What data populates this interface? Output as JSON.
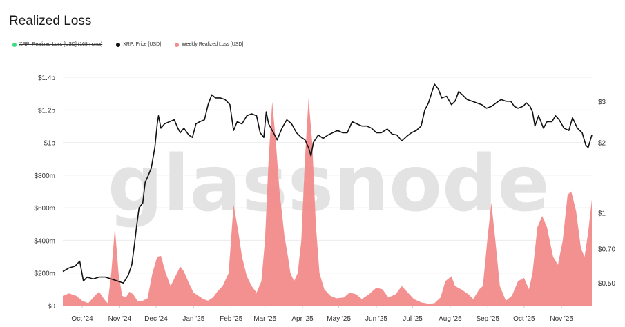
{
  "title": "Realized Loss",
  "legend": [
    {
      "label": "XRP: Realized Loss [USD] (168h sma)",
      "color": "#3ddc84",
      "struck": true
    },
    {
      "label": "XRP: Price [USD]",
      "color": "#111111",
      "struck": false
    },
    {
      "label": "Weekly Realized Loss [USD]",
      "color": "#f28b8b",
      "struck": false
    }
  ],
  "watermark": "glassnode",
  "chart_data": {
    "type": "area+line",
    "x_ticks": [
      "Oct '24",
      "Nov '24",
      "Dec '24",
      "Jan '25",
      "Feb '25",
      "Mar '25",
      "Apr '25",
      "May '25",
      "Jun '25",
      "Jul '25",
      "Aug '25",
      "Sep '25",
      "Oct '25",
      "Nov '25"
    ],
    "y_left": {
      "ticks": [
        "$0",
        "$200m",
        "$400m",
        "$600m",
        "$800m",
        "$1b",
        "$1.2b",
        "$1.4b"
      ],
      "range": [
        0,
        1400
      ]
    },
    "y_right": {
      "scale": "log",
      "ticks": [
        "$0.50",
        "$0.70",
        "$1",
        "$2",
        "$3"
      ],
      "range": [
        0.4,
        3.8
      ]
    },
    "series": [
      {
        "name": "Weekly Realized Loss [USD]",
        "color": "#f28b8b",
        "unit": "USD millions",
        "points": [
          [
            "2024-09-15",
            60
          ],
          [
            "2024-09-20",
            75
          ],
          [
            "2024-09-26",
            60
          ],
          [
            "2024-10-01",
            30
          ],
          [
            "2024-10-06",
            15
          ],
          [
            "2024-10-12",
            65
          ],
          [
            "2024-10-15",
            85
          ],
          [
            "2024-10-19",
            40
          ],
          [
            "2024-10-22",
            15
          ],
          [
            "2024-10-25",
            200
          ],
          [
            "2024-10-28",
            480
          ],
          [
            "2024-10-31",
            200
          ],
          [
            "2024-11-03",
            60
          ],
          [
            "2024-11-06",
            50
          ],
          [
            "2024-11-09",
            85
          ],
          [
            "2024-11-12",
            70
          ],
          [
            "2024-11-16",
            25
          ],
          [
            "2024-11-20",
            30
          ],
          [
            "2024-11-24",
            45
          ],
          [
            "2024-11-28",
            200
          ],
          [
            "2024-12-02",
            300
          ],
          [
            "2024-12-05",
            305
          ],
          [
            "2024-12-09",
            200
          ],
          [
            "2024-12-13",
            120
          ],
          [
            "2024-12-17",
            180
          ],
          [
            "2024-12-21",
            240
          ],
          [
            "2024-12-24",
            210
          ],
          [
            "2024-12-28",
            140
          ],
          [
            "2025-01-01",
            80
          ],
          [
            "2025-01-05",
            60
          ],
          [
            "2025-01-09",
            40
          ],
          [
            "2025-01-13",
            30
          ],
          [
            "2025-01-17",
            50
          ],
          [
            "2025-01-21",
            90
          ],
          [
            "2025-01-25",
            120
          ],
          [
            "2025-01-30",
            200
          ],
          [
            "2025-02-03",
            620
          ],
          [
            "2025-02-07",
            450
          ],
          [
            "2025-02-10",
            300
          ],
          [
            "2025-02-14",
            180
          ],
          [
            "2025-02-18",
            120
          ],
          [
            "2025-02-22",
            80
          ],
          [
            "2025-02-26",
            150
          ],
          [
            "2025-03-01",
            400
          ],
          [
            "2025-03-04",
            900
          ],
          [
            "2025-03-07",
            1250
          ],
          [
            "2025-03-10",
            1000
          ],
          [
            "2025-03-13",
            700
          ],
          [
            "2025-03-17",
            430
          ],
          [
            "2025-03-20",
            300
          ],
          [
            "2025-03-22",
            200
          ],
          [
            "2025-03-25",
            150
          ],
          [
            "2025-03-28",
            200
          ],
          [
            "2025-03-31",
            400
          ],
          [
            "2025-04-03",
            900
          ],
          [
            "2025-04-06",
            1270
          ],
          [
            "2025-04-09",
            1000
          ],
          [
            "2025-04-12",
            500
          ],
          [
            "2025-04-15",
            200
          ],
          [
            "2025-04-19",
            100
          ],
          [
            "2025-04-24",
            60
          ],
          [
            "2025-04-29",
            45
          ],
          [
            "2025-05-05",
            50
          ],
          [
            "2025-05-10",
            80
          ],
          [
            "2025-05-15",
            70
          ],
          [
            "2025-05-20",
            40
          ],
          [
            "2025-05-26",
            70
          ],
          [
            "2025-06-01",
            110
          ],
          [
            "2025-06-06",
            100
          ],
          [
            "2025-06-11",
            50
          ],
          [
            "2025-06-17",
            70
          ],
          [
            "2025-06-22",
            120
          ],
          [
            "2025-06-27",
            80
          ],
          [
            "2025-07-02",
            40
          ],
          [
            "2025-07-08",
            20
          ],
          [
            "2025-07-14",
            12
          ],
          [
            "2025-07-19",
            15
          ],
          [
            "2025-07-24",
            50
          ],
          [
            "2025-07-28",
            150
          ],
          [
            "2025-08-02",
            180
          ],
          [
            "2025-08-05",
            120
          ],
          [
            "2025-08-10",
            100
          ],
          [
            "2025-08-16",
            70
          ],
          [
            "2025-08-20",
            40
          ],
          [
            "2025-08-25",
            100
          ],
          [
            "2025-08-28",
            120
          ],
          [
            "2025-09-01",
            430
          ],
          [
            "2025-09-04",
            630
          ],
          [
            "2025-09-07",
            420
          ],
          [
            "2025-09-11",
            120
          ],
          [
            "2025-09-16",
            30
          ],
          [
            "2025-09-21",
            60
          ],
          [
            "2025-09-26",
            150
          ],
          [
            "2025-10-01",
            170
          ],
          [
            "2025-10-05",
            100
          ],
          [
            "2025-10-08",
            200
          ],
          [
            "2025-10-12",
            480
          ],
          [
            "2025-10-16",
            550
          ],
          [
            "2025-10-20",
            480
          ],
          [
            "2025-10-25",
            300
          ],
          [
            "2025-10-29",
            250
          ],
          [
            "2025-11-02",
            400
          ],
          [
            "2025-11-06",
            680
          ],
          [
            "2025-11-09",
            700
          ],
          [
            "2025-11-13",
            580
          ],
          [
            "2025-11-17",
            350
          ],
          [
            "2025-11-20",
            300
          ],
          [
            "2025-11-23",
            450
          ],
          [
            "2025-11-26",
            650
          ]
        ]
      },
      {
        "name": "XRP: Price [USD]",
        "color": "#111111",
        "unit": "USD",
        "points": [
          [
            "2024-09-15",
            0.56
          ],
          [
            "2024-09-20",
            0.58
          ],
          [
            "2024-09-25",
            0.59
          ],
          [
            "2024-09-29",
            0.62
          ],
          [
            "2024-10-02",
            0.51
          ],
          [
            "2024-10-05",
            0.53
          ],
          [
            "2024-10-10",
            0.52
          ],
          [
            "2024-10-15",
            0.53
          ],
          [
            "2024-10-20",
            0.53
          ],
          [
            "2024-10-25",
            0.52
          ],
          [
            "2024-10-30",
            0.51
          ],
          [
            "2024-11-04",
            0.5
          ],
          [
            "2024-11-08",
            0.54
          ],
          [
            "2024-11-11",
            0.6
          ],
          [
            "2024-11-13",
            0.72
          ],
          [
            "2024-11-15",
            0.88
          ],
          [
            "2024-11-17",
            1.05
          ],
          [
            "2024-11-20",
            1.1
          ],
          [
            "2024-11-22",
            1.35
          ],
          [
            "2024-11-24",
            1.42
          ],
          [
            "2024-11-27",
            1.55
          ],
          [
            "2024-11-30",
            1.9
          ],
          [
            "2024-12-02",
            2.4
          ],
          [
            "2024-12-03",
            2.6
          ],
          [
            "2024-12-05",
            2.3
          ],
          [
            "2024-12-08",
            2.4
          ],
          [
            "2024-12-12",
            2.45
          ],
          [
            "2024-12-16",
            2.5
          ],
          [
            "2024-12-19",
            2.3
          ],
          [
            "2024-12-21",
            2.2
          ],
          [
            "2024-12-24",
            2.3
          ],
          [
            "2024-12-28",
            2.15
          ],
          [
            "2024-12-31",
            2.1
          ],
          [
            "2025-01-03",
            2.4
          ],
          [
            "2025-01-06",
            2.45
          ],
          [
            "2025-01-10",
            2.5
          ],
          [
            "2025-01-13",
            2.9
          ],
          [
            "2025-01-16",
            3.2
          ],
          [
            "2025-01-19",
            3.1
          ],
          [
            "2025-01-23",
            3.1
          ],
          [
            "2025-01-27",
            3.05
          ],
          [
            "2025-01-31",
            2.9
          ],
          [
            "2025-02-03",
            2.25
          ],
          [
            "2025-02-06",
            2.45
          ],
          [
            "2025-02-10",
            2.4
          ],
          [
            "2025-02-14",
            2.6
          ],
          [
            "2025-02-18",
            2.65
          ],
          [
            "2025-02-22",
            2.6
          ],
          [
            "2025-02-25",
            2.2
          ],
          [
            "2025-02-28",
            2.1
          ],
          [
            "2025-03-02",
            2.7
          ],
          [
            "2025-03-04",
            2.4
          ],
          [
            "2025-03-08",
            2.2
          ],
          [
            "2025-03-11",
            2.05
          ],
          [
            "2025-03-15",
            2.3
          ],
          [
            "2025-03-19",
            2.5
          ],
          [
            "2025-03-23",
            2.4
          ],
          [
            "2025-03-27",
            2.2
          ],
          [
            "2025-03-31",
            2.1
          ],
          [
            "2025-04-03",
            2.05
          ],
          [
            "2025-04-06",
            1.9
          ],
          [
            "2025-04-08",
            1.75
          ],
          [
            "2025-04-10",
            2.0
          ],
          [
            "2025-04-14",
            2.15
          ],
          [
            "2025-04-18",
            2.08
          ],
          [
            "2025-04-22",
            2.15
          ],
          [
            "2025-04-26",
            2.2
          ],
          [
            "2025-04-30",
            2.25
          ],
          [
            "2025-05-04",
            2.2
          ],
          [
            "2025-05-08",
            2.2
          ],
          [
            "2025-05-12",
            2.45
          ],
          [
            "2025-05-16",
            2.4
          ],
          [
            "2025-05-20",
            2.35
          ],
          [
            "2025-05-24",
            2.35
          ],
          [
            "2025-05-28",
            2.3
          ],
          [
            "2025-06-01",
            2.2
          ],
          [
            "2025-06-05",
            2.2
          ],
          [
            "2025-06-10",
            2.28
          ],
          [
            "2025-06-14",
            2.17
          ],
          [
            "2025-06-18",
            2.15
          ],
          [
            "2025-06-22",
            2.03
          ],
          [
            "2025-06-26",
            2.12
          ],
          [
            "2025-06-30",
            2.2
          ],
          [
            "2025-07-04",
            2.25
          ],
          [
            "2025-07-08",
            2.35
          ],
          [
            "2025-07-11",
            2.75
          ],
          [
            "2025-07-14",
            2.95
          ],
          [
            "2025-07-17",
            3.3
          ],
          [
            "2025-07-19",
            3.55
          ],
          [
            "2025-07-22",
            3.4
          ],
          [
            "2025-07-25",
            3.1
          ],
          [
            "2025-07-29",
            3.15
          ],
          [
            "2025-08-02",
            2.9
          ],
          [
            "2025-08-05",
            3.0
          ],
          [
            "2025-08-08",
            3.3
          ],
          [
            "2025-08-11",
            3.2
          ],
          [
            "2025-08-15",
            3.05
          ],
          [
            "2025-08-19",
            3.0
          ],
          [
            "2025-08-23",
            2.95
          ],
          [
            "2025-08-27",
            2.9
          ],
          [
            "2025-08-31",
            2.8
          ],
          [
            "2025-09-04",
            2.85
          ],
          [
            "2025-09-08",
            2.95
          ],
          [
            "2025-09-12",
            3.05
          ],
          [
            "2025-09-16",
            3.0
          ],
          [
            "2025-09-20",
            3.0
          ],
          [
            "2025-09-23",
            2.85
          ],
          [
            "2025-09-26",
            2.8
          ],
          [
            "2025-09-30",
            2.85
          ],
          [
            "2025-10-03",
            2.95
          ],
          [
            "2025-10-06",
            2.85
          ],
          [
            "2025-10-08",
            2.7
          ],
          [
            "2025-10-10",
            2.35
          ],
          [
            "2025-10-13",
            2.6
          ],
          [
            "2025-10-17",
            2.3
          ],
          [
            "2025-10-20",
            2.45
          ],
          [
            "2025-10-24",
            2.45
          ],
          [
            "2025-10-27",
            2.6
          ],
          [
            "2025-10-30",
            2.5
          ],
          [
            "2025-11-03",
            2.3
          ],
          [
            "2025-11-07",
            2.25
          ],
          [
            "2025-11-10",
            2.55
          ],
          [
            "2025-11-14",
            2.3
          ],
          [
            "2025-11-18",
            2.2
          ],
          [
            "2025-11-21",
            1.95
          ],
          [
            "2025-11-23",
            1.9
          ],
          [
            "2025-11-26",
            2.15
          ]
        ]
      }
    ]
  }
}
